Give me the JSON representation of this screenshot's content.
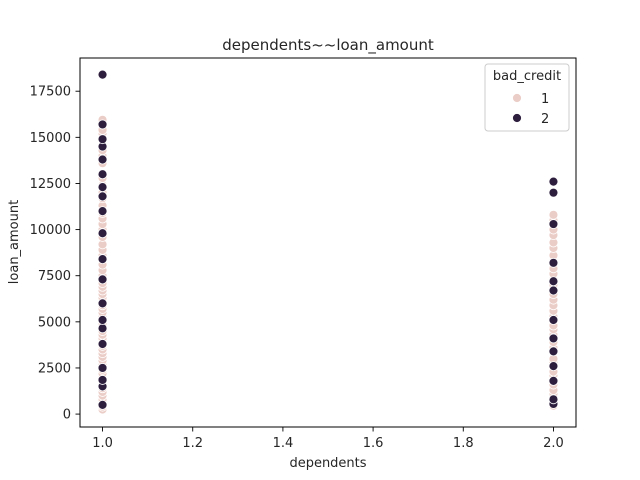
{
  "chart_data": {
    "type": "scatter",
    "title": "dependents~~loan_amount",
    "xlabel": "dependents",
    "ylabel": "loan_amount",
    "xlim": [
      0.95,
      2.05
    ],
    "ylim": [
      -700,
      19300
    ],
    "x_ticks": [
      "1.0",
      "1.2",
      "1.4",
      "1.6",
      "1.8",
      "2.0"
    ],
    "y_ticks": [
      "0",
      "2500",
      "5000",
      "7500",
      "10000",
      "12500",
      "15000",
      "17500"
    ],
    "grid": false,
    "legend": {
      "title": "bad_credit",
      "placement": "top-right",
      "entries": [
        "1",
        "2"
      ]
    },
    "colors": {
      "1": "#ebcdc7",
      "2": "#2d1e3e"
    },
    "series": [
      {
        "name": "1",
        "color": "#ebcdc7",
        "points": [
          [
            1.0,
            250
          ],
          [
            1.0,
            400
          ],
          [
            1.0,
            600
          ],
          [
            1.0,
            800
          ],
          [
            1.0,
            1000
          ],
          [
            1.0,
            1200
          ],
          [
            1.0,
            1400
          ],
          [
            1.0,
            1600
          ],
          [
            1.0,
            1750
          ],
          [
            1.0,
            2000
          ],
          [
            1.0,
            2200
          ],
          [
            1.0,
            2400
          ],
          [
            1.0,
            2700
          ],
          [
            1.0,
            2900
          ],
          [
            1.0,
            3100
          ],
          [
            1.0,
            3300
          ],
          [
            1.0,
            3500
          ],
          [
            1.0,
            3700
          ],
          [
            1.0,
            3900
          ],
          [
            1.0,
            4100
          ],
          [
            1.0,
            4300
          ],
          [
            1.0,
            4500
          ],
          [
            1.0,
            4700
          ],
          [
            1.0,
            4900
          ],
          [
            1.0,
            5300
          ],
          [
            1.0,
            5500
          ],
          [
            1.0,
            5700
          ],
          [
            1.0,
            5900
          ],
          [
            1.0,
            6100
          ],
          [
            1.0,
            6300
          ],
          [
            1.0,
            6500
          ],
          [
            1.0,
            6700
          ],
          [
            1.0,
            6900
          ],
          [
            1.0,
            7100
          ],
          [
            1.0,
            7500
          ],
          [
            1.0,
            7800
          ],
          [
            1.0,
            8100
          ],
          [
            1.0,
            8600
          ],
          [
            1.0,
            8900
          ],
          [
            1.0,
            9200
          ],
          [
            1.0,
            9600
          ],
          [
            1.0,
            10000
          ],
          [
            1.0,
            10300
          ],
          [
            1.0,
            10600
          ],
          [
            1.0,
            10900
          ],
          [
            1.0,
            11300
          ],
          [
            1.0,
            11700
          ],
          [
            1.0,
            12000
          ],
          [
            1.0,
            12400
          ],
          [
            1.0,
            12800
          ],
          [
            1.0,
            13600
          ],
          [
            1.0,
            14000
          ],
          [
            1.0,
            14300
          ],
          [
            1.0,
            15200
          ],
          [
            1.0,
            15400
          ],
          [
            1.0,
            15700
          ],
          [
            1.0,
            15950
          ],
          [
            2.0,
            450
          ],
          [
            2.0,
            650
          ],
          [
            2.0,
            900
          ],
          [
            2.0,
            1100
          ],
          [
            2.0,
            1300
          ],
          [
            2.0,
            1600
          ],
          [
            2.0,
            1900
          ],
          [
            2.0,
            2100
          ],
          [
            2.0,
            2300
          ],
          [
            2.0,
            2800
          ],
          [
            2.0,
            3000
          ],
          [
            2.0,
            3600
          ],
          [
            2.0,
            3900
          ],
          [
            2.0,
            4300
          ],
          [
            2.0,
            4600
          ],
          [
            2.0,
            4800
          ],
          [
            2.0,
            5300
          ],
          [
            2.0,
            5600
          ],
          [
            2.0,
            5900
          ],
          [
            2.0,
            6200
          ],
          [
            2.0,
            6500
          ],
          [
            2.0,
            6800
          ],
          [
            2.0,
            7000
          ],
          [
            2.0,
            7300
          ],
          [
            2.0,
            7600
          ],
          [
            2.0,
            7900
          ],
          [
            2.0,
            8600
          ],
          [
            2.0,
            9000
          ],
          [
            2.0,
            9300
          ],
          [
            2.0,
            9700
          ],
          [
            2.0,
            10000
          ],
          [
            2.0,
            10500
          ],
          [
            2.0,
            10800
          ]
        ]
      },
      {
        "name": "2",
        "color": "#2d1e3e",
        "points": [
          [
            1.0,
            500
          ],
          [
            1.0,
            1500
          ],
          [
            1.0,
            1850
          ],
          [
            1.0,
            2500
          ],
          [
            1.0,
            3800
          ],
          [
            1.0,
            4650
          ],
          [
            1.0,
            5100
          ],
          [
            1.0,
            6000
          ],
          [
            1.0,
            7300
          ],
          [
            1.0,
            8400
          ],
          [
            1.0,
            9800
          ],
          [
            1.0,
            11000
          ],
          [
            1.0,
            11800
          ],
          [
            1.0,
            12300
          ],
          [
            1.0,
            13000
          ],
          [
            1.0,
            13800
          ],
          [
            1.0,
            14500
          ],
          [
            1.0,
            14900
          ],
          [
            1.0,
            15700
          ],
          [
            1.0,
            18400
          ],
          [
            2.0,
            550
          ],
          [
            2.0,
            800
          ],
          [
            2.0,
            1800
          ],
          [
            2.0,
            2600
          ],
          [
            2.0,
            3400
          ],
          [
            2.0,
            4100
          ],
          [
            2.0,
            5100
          ],
          [
            2.0,
            6700
          ],
          [
            2.0,
            7200
          ],
          [
            2.0,
            8200
          ],
          [
            2.0,
            10300
          ],
          [
            2.0,
            12000
          ],
          [
            2.0,
            12600
          ]
        ]
      }
    ]
  }
}
